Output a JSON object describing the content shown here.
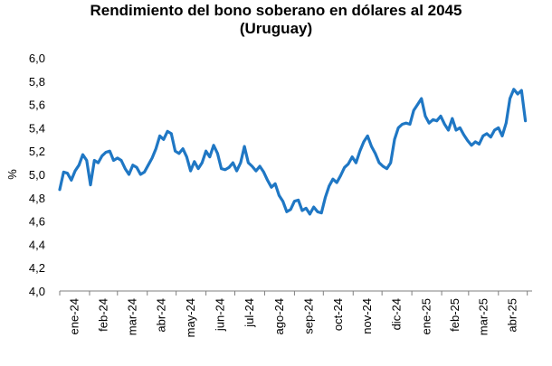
{
  "chart_data": {
    "type": "line",
    "title": "Rendimiento del bono soberano en dólares al 2045",
    "subtitle": "(Uruguay)",
    "xlabel": "",
    "ylabel": "%",
    "ylim": [
      4.0,
      6.0
    ],
    "yticks": [
      "6,0",
      "5,8",
      "5,6",
      "5,4",
      "5,2",
      "5,0",
      "4,8",
      "4,6",
      "4,4",
      "4,2",
      "4,0"
    ],
    "xticks": [
      "ene-24",
      "feb-24",
      "mar-24",
      "abr-24",
      "may-24",
      "jun-24",
      "jul-24",
      "ago-24",
      "sep-24",
      "oct-24",
      "nov-24",
      "dic-24",
      "ene-25",
      "feb-25",
      "mar-25",
      "abr-25"
    ],
    "grid": false,
    "legend": "none",
    "color": "#1f77c4",
    "series": [
      {
        "x": [
          "2024-01-01",
          "2024-01-05",
          "2024-01-09",
          "2024-01-13",
          "2024-01-17",
          "2024-01-21",
          "2024-01-25",
          "2024-01-29",
          "2024-02-02",
          "2024-02-06",
          "2024-02-10",
          "2024-02-14",
          "2024-02-18",
          "2024-02-22",
          "2024-02-26",
          "2024-03-01",
          "2024-03-05",
          "2024-03-09",
          "2024-03-13",
          "2024-03-17",
          "2024-03-21",
          "2024-03-25",
          "2024-03-29",
          "2024-04-02",
          "2024-04-06",
          "2024-04-10",
          "2024-04-14",
          "2024-04-18",
          "2024-04-22",
          "2024-04-26",
          "2024-04-30",
          "2024-05-04",
          "2024-05-08",
          "2024-05-12",
          "2024-05-16",
          "2024-05-20",
          "2024-05-24",
          "2024-05-28",
          "2024-06-01",
          "2024-06-05",
          "2024-06-09",
          "2024-06-13",
          "2024-06-17",
          "2024-06-21",
          "2024-06-25",
          "2024-06-29",
          "2024-07-03",
          "2024-07-07",
          "2024-07-11",
          "2024-07-15",
          "2024-07-19",
          "2024-07-23",
          "2024-07-27",
          "2024-07-31",
          "2024-08-04",
          "2024-08-08",
          "2024-08-12",
          "2024-08-16",
          "2024-08-20",
          "2024-08-24",
          "2024-08-28",
          "2024-09-01",
          "2024-09-05",
          "2024-09-09",
          "2024-09-13",
          "2024-09-17",
          "2024-09-21",
          "2024-09-25",
          "2024-09-29",
          "2024-10-03",
          "2024-10-07",
          "2024-10-11",
          "2024-10-15",
          "2024-10-19",
          "2024-10-23",
          "2024-10-27",
          "2024-10-31",
          "2024-11-04",
          "2024-11-08",
          "2024-11-12",
          "2024-11-16",
          "2024-11-20",
          "2024-11-24",
          "2024-11-28",
          "2024-12-02",
          "2024-12-06",
          "2024-12-10",
          "2024-12-14",
          "2024-12-18",
          "2024-12-22",
          "2024-12-26",
          "2024-12-30",
          "2025-01-03",
          "2025-01-07",
          "2025-01-11",
          "2025-01-15",
          "2025-01-19",
          "2025-01-23",
          "2025-01-27",
          "2025-01-31",
          "2025-02-04",
          "2025-02-08",
          "2025-02-12",
          "2025-02-16",
          "2025-02-20",
          "2025-02-24",
          "2025-02-28",
          "2025-03-04",
          "2025-03-08",
          "2025-03-12",
          "2025-03-16",
          "2025-03-20",
          "2025-03-24",
          "2025-03-28",
          "2025-04-01",
          "2025-04-05",
          "2025-04-09",
          "2025-04-13",
          "2025-04-17",
          "2025-04-21",
          "2025-04-25",
          "2025-04-29"
        ],
        "values": [
          4.87,
          5.02,
          5.01,
          4.95,
          5.03,
          5.08,
          5.17,
          5.12,
          4.91,
          5.12,
          5.1,
          5.16,
          5.19,
          5.2,
          5.12,
          5.14,
          5.12,
          5.05,
          5.0,
          5.08,
          5.06,
          5.0,
          5.02,
          5.08,
          5.14,
          5.22,
          5.33,
          5.3,
          5.37,
          5.35,
          5.2,
          5.18,
          5.22,
          5.15,
          5.03,
          5.11,
          5.05,
          5.1,
          5.2,
          5.15,
          5.25,
          5.18,
          5.05,
          5.04,
          5.06,
          5.1,
          5.03,
          5.1,
          5.24,
          5.1,
          5.07,
          5.03,
          5.07,
          5.02,
          4.95,
          4.89,
          4.92,
          4.82,
          4.77,
          4.68,
          4.7,
          4.77,
          4.78,
          4.69,
          4.71,
          4.66,
          4.72,
          4.68,
          4.67,
          4.8,
          4.9,
          4.96,
          4.93,
          4.99,
          5.06,
          5.09,
          5.15,
          5.1,
          5.2,
          5.28,
          5.33,
          5.24,
          5.18,
          5.1,
          5.07,
          5.05,
          5.1,
          5.3,
          5.4,
          5.43,
          5.44,
          5.43,
          5.55,
          5.6,
          5.65,
          5.5,
          5.44,
          5.47,
          5.46,
          5.5,
          5.43,
          5.38,
          5.48,
          5.38,
          5.4,
          5.34,
          5.29,
          5.25,
          5.28,
          5.26,
          5.33,
          5.35,
          5.32,
          5.38,
          5.4,
          5.33,
          5.44,
          5.65,
          5.73,
          5.69,
          5.72,
          5.46
        ]
      }
    ]
  }
}
